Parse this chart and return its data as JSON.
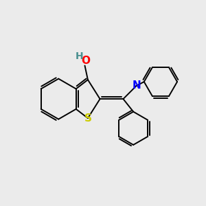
{
  "background_color": "#ebebeb",
  "bond_color": "#000000",
  "atom_colors": {
    "O": "#ff0000",
    "S": "#cccc00",
    "N": "#0000ff",
    "H": "#4a9090",
    "C": "#000000"
  },
  "line_width": 1.4,
  "figsize": [
    3.0,
    3.0
  ],
  "dpi": 100
}
